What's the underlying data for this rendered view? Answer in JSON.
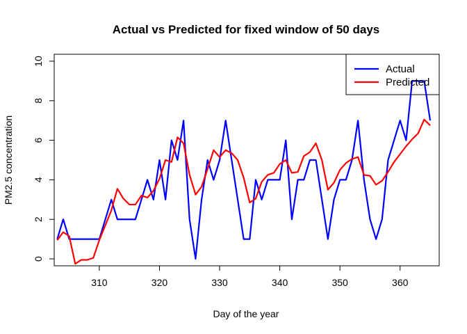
{
  "chart_data": {
    "type": "line",
    "title": "Actual vs Predicted for fixed window of 50 days",
    "xlabel": "Day of the year",
    "ylabel": "PM2.5 concentration",
    "xlim": [
      302.5,
      366.5
    ],
    "ylim": [
      -0.35,
      10.35
    ],
    "xticks": [
      310,
      320,
      330,
      340,
      350,
      360
    ],
    "yticks": [
      0,
      2,
      4,
      6,
      8,
      10
    ],
    "grid": false,
    "legend_position": "top-right",
    "series": [
      {
        "name": "Actual",
        "color": "#0000ff",
        "x": [
          303,
          304,
          305,
          306,
          307,
          308,
          309,
          310,
          311,
          312,
          313,
          314,
          315,
          316,
          317,
          318,
          319,
          320,
          321,
          322,
          323,
          324,
          325,
          326,
          327,
          328,
          329,
          330,
          331,
          332,
          333,
          334,
          335,
          336,
          337,
          338,
          339,
          340,
          341,
          342,
          343,
          344,
          345,
          346,
          347,
          348,
          349,
          350,
          351,
          352,
          353,
          354,
          355,
          356,
          357,
          358,
          359,
          360,
          361,
          362,
          363,
          364,
          365
        ],
        "values": [
          1,
          2,
          1,
          1,
          1,
          1,
          1,
          1,
          2,
          3,
          2,
          2,
          2,
          2,
          3,
          4,
          3,
          5,
          3,
          6,
          5,
          7,
          2,
          0,
          3,
          5,
          4,
          5,
          7,
          5,
          3,
          1,
          1,
          4,
          3,
          4,
          4,
          4,
          6,
          2,
          4,
          4,
          5,
          5,
          3,
          1,
          3,
          4,
          4,
          5,
          7,
          4,
          2,
          1,
          2,
          5,
          6,
          7,
          6,
          9,
          9,
          9,
          7
        ]
      },
      {
        "name": "Predicted",
        "color": "#ff0000",
        "x": [
          303,
          304,
          305,
          306,
          307,
          308,
          309,
          310,
          311,
          312,
          313,
          314,
          315,
          316,
          317,
          318,
          319,
          320,
          321,
          322,
          323,
          324,
          325,
          326,
          327,
          328,
          329,
          330,
          331,
          332,
          333,
          334,
          335,
          336,
          337,
          338,
          339,
          340,
          341,
          342,
          343,
          344,
          345,
          346,
          347,
          348,
          349,
          350,
          351,
          352,
          353,
          354,
          355,
          356,
          357,
          358,
          359,
          360,
          361,
          362,
          363,
          364,
          365
        ],
        "values": [
          0.95,
          1.35,
          1.15,
          -0.25,
          -0.05,
          -0.05,
          0.05,
          0.95,
          1.7,
          2.45,
          3.55,
          3.05,
          2.75,
          2.75,
          3.2,
          3.1,
          3.45,
          4.05,
          5.0,
          4.9,
          6.15,
          5.85,
          4.25,
          3.25,
          3.65,
          4.55,
          5.5,
          5.15,
          5.5,
          5.35,
          5.0,
          4.1,
          2.85,
          3.05,
          3.9,
          4.25,
          4.35,
          4.8,
          5.0,
          4.35,
          4.4,
          5.2,
          5.4,
          5.85,
          5.0,
          3.5,
          3.85,
          4.5,
          4.85,
          5.05,
          5.15,
          4.25,
          4.2,
          3.75,
          3.95,
          4.4,
          4.9,
          5.3,
          5.7,
          6.05,
          6.35,
          7.05,
          6.75
        ]
      }
    ]
  }
}
